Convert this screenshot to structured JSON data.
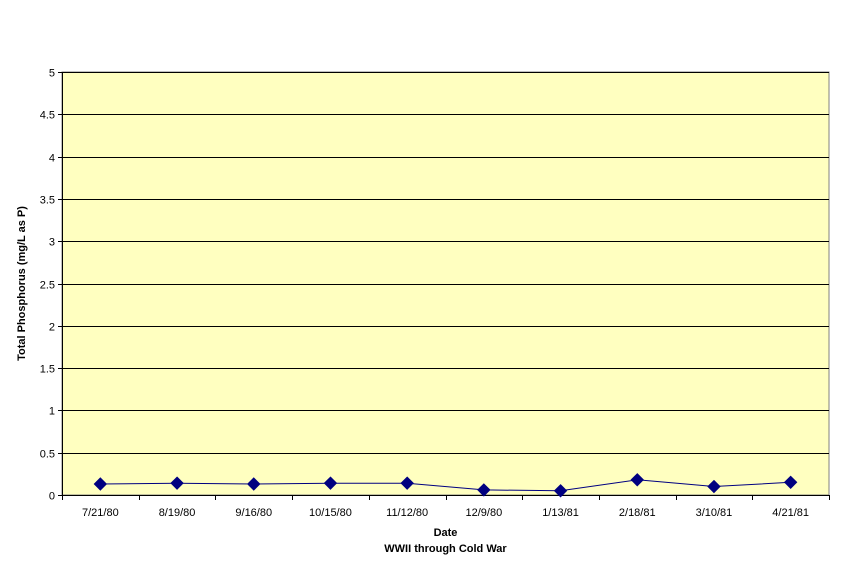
{
  "chart_data": {
    "type": "line",
    "title": "",
    "xlabel": "Date",
    "subtitle": "WWII through Cold War",
    "ylabel": "Total Phosphorus (mg/L as P)",
    "ylim": [
      0,
      5
    ],
    "yticks": [
      "0",
      "0.5",
      "1",
      "1.5",
      "2",
      "2.5",
      "3",
      "3.5",
      "4",
      "4.5",
      "5"
    ],
    "categories": [
      "7/21/80",
      "8/19/80",
      "9/16/80",
      "10/15/80",
      "11/12/80",
      "12/9/80",
      "1/13/81",
      "2/18/81",
      "3/10/81",
      "4/21/81"
    ],
    "series": [
      {
        "values": [
          0.13,
          0.14,
          0.13,
          0.14,
          0.14,
          0.06,
          0.05,
          0.18,
          0.1,
          0.15
        ],
        "color": "#000080",
        "marker": "diamond"
      }
    ],
    "grid": true,
    "legend": "none",
    "plot_background": "#FFFFC0",
    "gridline_color": "#000000"
  }
}
